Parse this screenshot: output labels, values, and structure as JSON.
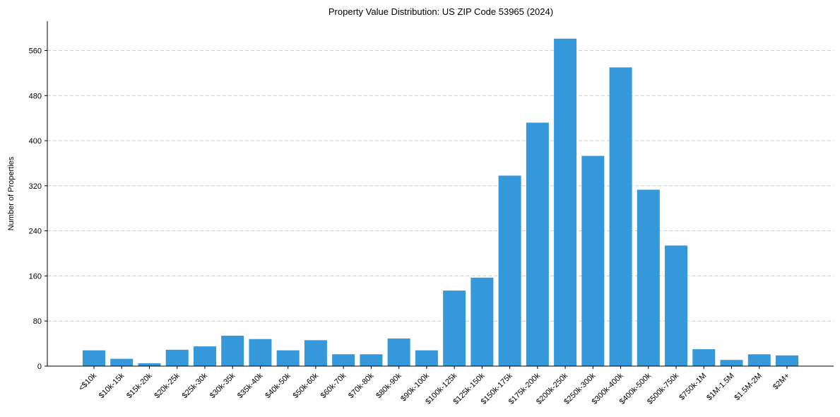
{
  "chart_data": {
    "type": "bar",
    "title": "Property Value Distribution: US ZIP Code 53965 (2024)",
    "xlabel": "",
    "ylabel": "Number of Properties",
    "ylim": [
      0,
      612
    ],
    "yticks": [
      0,
      80,
      160,
      240,
      320,
      400,
      480,
      560
    ],
    "grid": "y-dashed",
    "bar_color": "#3498db",
    "categories": [
      "<$10k",
      "$10k-15k",
      "$15k-20k",
      "$20k-25k",
      "$25k-30k",
      "$30k-35k",
      "$35k-40k",
      "$40k-50k",
      "$50k-60k",
      "$60k-70k",
      "$70k-80k",
      "$80k-90k",
      "$90k-100k",
      "$100k-125k",
      "$125k-150k",
      "$150k-175k",
      "$175k-200k",
      "$200k-250k",
      "$250k-300k",
      "$300k-400k",
      "$400k-500k",
      "$500k-750k",
      "$750k-1M",
      "$1M-1.5M",
      "$1.5M-2M",
      "$2M+"
    ],
    "values": [
      28,
      13,
      5,
      29,
      35,
      54,
      48,
      28,
      46,
      21,
      21,
      49,
      28,
      134,
      157,
      338,
      432,
      581,
      373,
      530,
      313,
      214,
      30,
      11,
      21,
      19
    ]
  }
}
